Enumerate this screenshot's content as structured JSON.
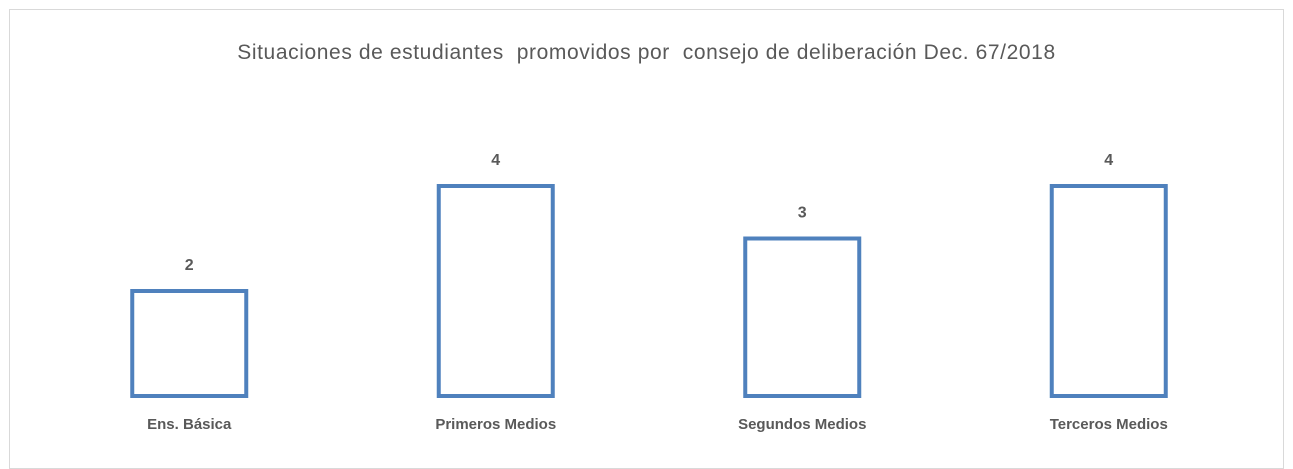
{
  "chart_data": {
    "type": "bar",
    "title": "Situaciones de estudiantes  promovidos por  consejo de deliberación Dec. 67/2018",
    "categories": [
      "Ens. Básica",
      "Primeros Medios",
      "Segundos Medios",
      "Terceros Medios"
    ],
    "values": [
      2,
      4,
      3,
      4
    ],
    "color": "#4f81bd"
  }
}
